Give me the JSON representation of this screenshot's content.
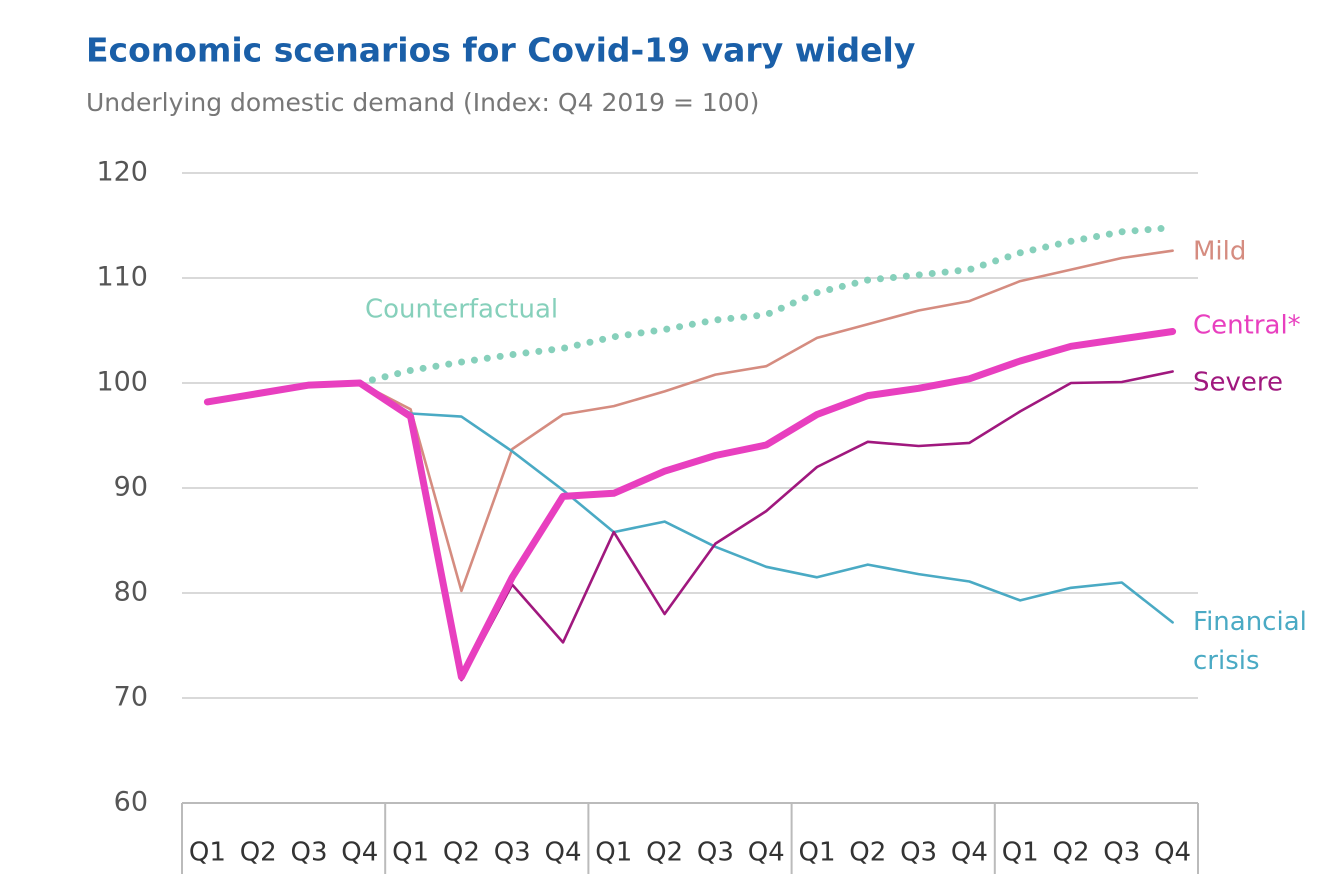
{
  "chart_data": {
    "type": "line",
    "title": "Economic scenarios for Covid-19 vary widely",
    "subtitle": "Underlying domestic demand (Index: Q4 2019 = 100)",
    "categories": [
      "Q1",
      "Q2",
      "Q3",
      "Q4",
      "Q1",
      "Q2",
      "Q3",
      "Q4",
      "Q1",
      "Q2",
      "Q3",
      "Q4",
      "Q1",
      "Q2",
      "Q3",
      "Q4",
      "Q1",
      "Q2",
      "Q3",
      "Q4"
    ],
    "ylim": [
      60,
      120
    ],
    "yticks": [
      60,
      70,
      80,
      90,
      100,
      110,
      120
    ],
    "grid": true,
    "series": [
      {
        "name": "Counterfactual",
        "color": "#86d0bb",
        "style": "dotted",
        "values": [
          null,
          null,
          null,
          100,
          101.2,
          102,
          102.7,
          103.3,
          104.4,
          105.1,
          106,
          106.5,
          108.6,
          109.8,
          110.3,
          110.8,
          112.4,
          113.5,
          114.4,
          114.8
        ]
      },
      {
        "name": "Mild",
        "color": "#d58c80",
        "values": [
          null,
          null,
          null,
          100,
          97.5,
          80.2,
          93.7,
          97,
          97.8,
          99.2,
          100.8,
          101.6,
          104.3,
          105.6,
          106.9,
          107.8,
          109.7,
          110.8,
          111.9,
          112.6
        ]
      },
      {
        "name": "Financial crisis",
        "color": "#4aaac4",
        "values": [
          null,
          null,
          null,
          100,
          97.1,
          96.8,
          93.5,
          89.8,
          85.8,
          86.8,
          84.4,
          82.5,
          81.5,
          82.7,
          81.8,
          81.1,
          79.3,
          80.5,
          81,
          77.2
        ]
      },
      {
        "name": "Severe",
        "color": "#a0187e",
        "values": [
          null,
          null,
          null,
          100,
          96.6,
          71.7,
          80.8,
          75.3,
          85.8,
          78,
          84.7,
          87.8,
          92,
          94.4,
          94,
          94.3,
          97.3,
          100,
          100.1,
          101.1
        ]
      },
      {
        "name": "Central*",
        "color": "#e83fbf",
        "values": [
          98.2,
          99,
          99.8,
          100,
          96.8,
          72,
          81.5,
          89.2,
          89.5,
          91.6,
          93.1,
          94.1,
          97,
          98.8,
          99.5,
          100.4,
          102.1,
          103.5,
          104.2,
          104.9
        ]
      }
    ]
  }
}
